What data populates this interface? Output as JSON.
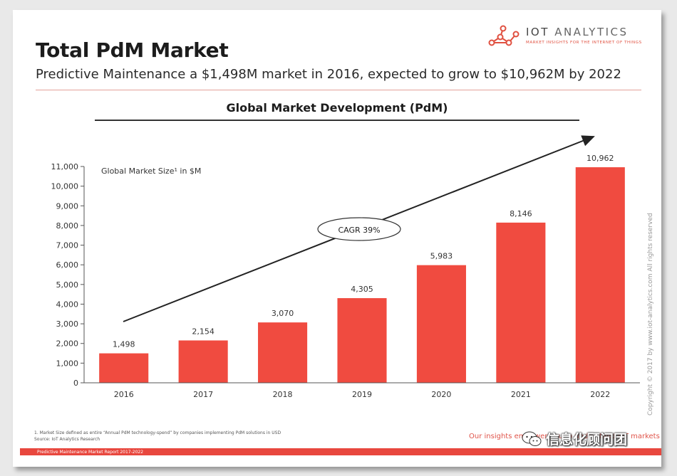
{
  "header": {
    "title": "Total PdM Market",
    "subtitle": "Predictive Maintenance a $1,498M market in 2016, expected to grow to $10,962M by 2022"
  },
  "logo": {
    "name_part1": "IOT",
    "name_part2": "ANALYTICS",
    "tagline": "MARKET INSIGHTS FOR THE INTERNET OF THINGS",
    "icon": "network-nodes-icon",
    "color": "#e05040"
  },
  "section_title": "Global Market Development (PdM)",
  "chart_data": {
    "type": "bar",
    "title": "Global Market Development (PdM)",
    "inner_label": "Global Market Size¹ in $M",
    "categories": [
      "2016",
      "2017",
      "2018",
      "2019",
      "2020",
      "2021",
      "2022"
    ],
    "values": [
      1498,
      2154,
      3070,
      4305,
      5983,
      8146,
      10962
    ],
    "value_labels": [
      "1,498",
      "2,154",
      "3,070",
      "4,305",
      "5,983",
      "8,146",
      "10,962"
    ],
    "ylim": [
      0,
      11000
    ],
    "yticks": [
      0,
      1000,
      2000,
      3000,
      4000,
      5000,
      6000,
      7000,
      8000,
      9000,
      10000,
      11000
    ],
    "ytick_labels": [
      "0",
      "1,000",
      "2,000",
      "3,000",
      "4,000",
      "5,000",
      "6,000",
      "7,000",
      "8,000",
      "9,000",
      "10,000",
      "11,000"
    ],
    "annotation": "CAGR 39%",
    "bar_color": "#f04b40",
    "grid": false
  },
  "footnote": {
    "line1": "1. Market Size defined as entire “Annual PdM technology-spend” by companies implementing PdM solutions in USD",
    "line2": "Source: IoT Analytics Research"
  },
  "copyright": "Copyright © 2017 by www.iot-analytics.com All rights reserved",
  "insights_text": "Our insights empower you to understand IoT markets",
  "footer_text": "Predictive Maintenance Market Report 2017-2022",
  "watermark": {
    "text": "信息化顾问团",
    "icon": "wechat-icon"
  }
}
